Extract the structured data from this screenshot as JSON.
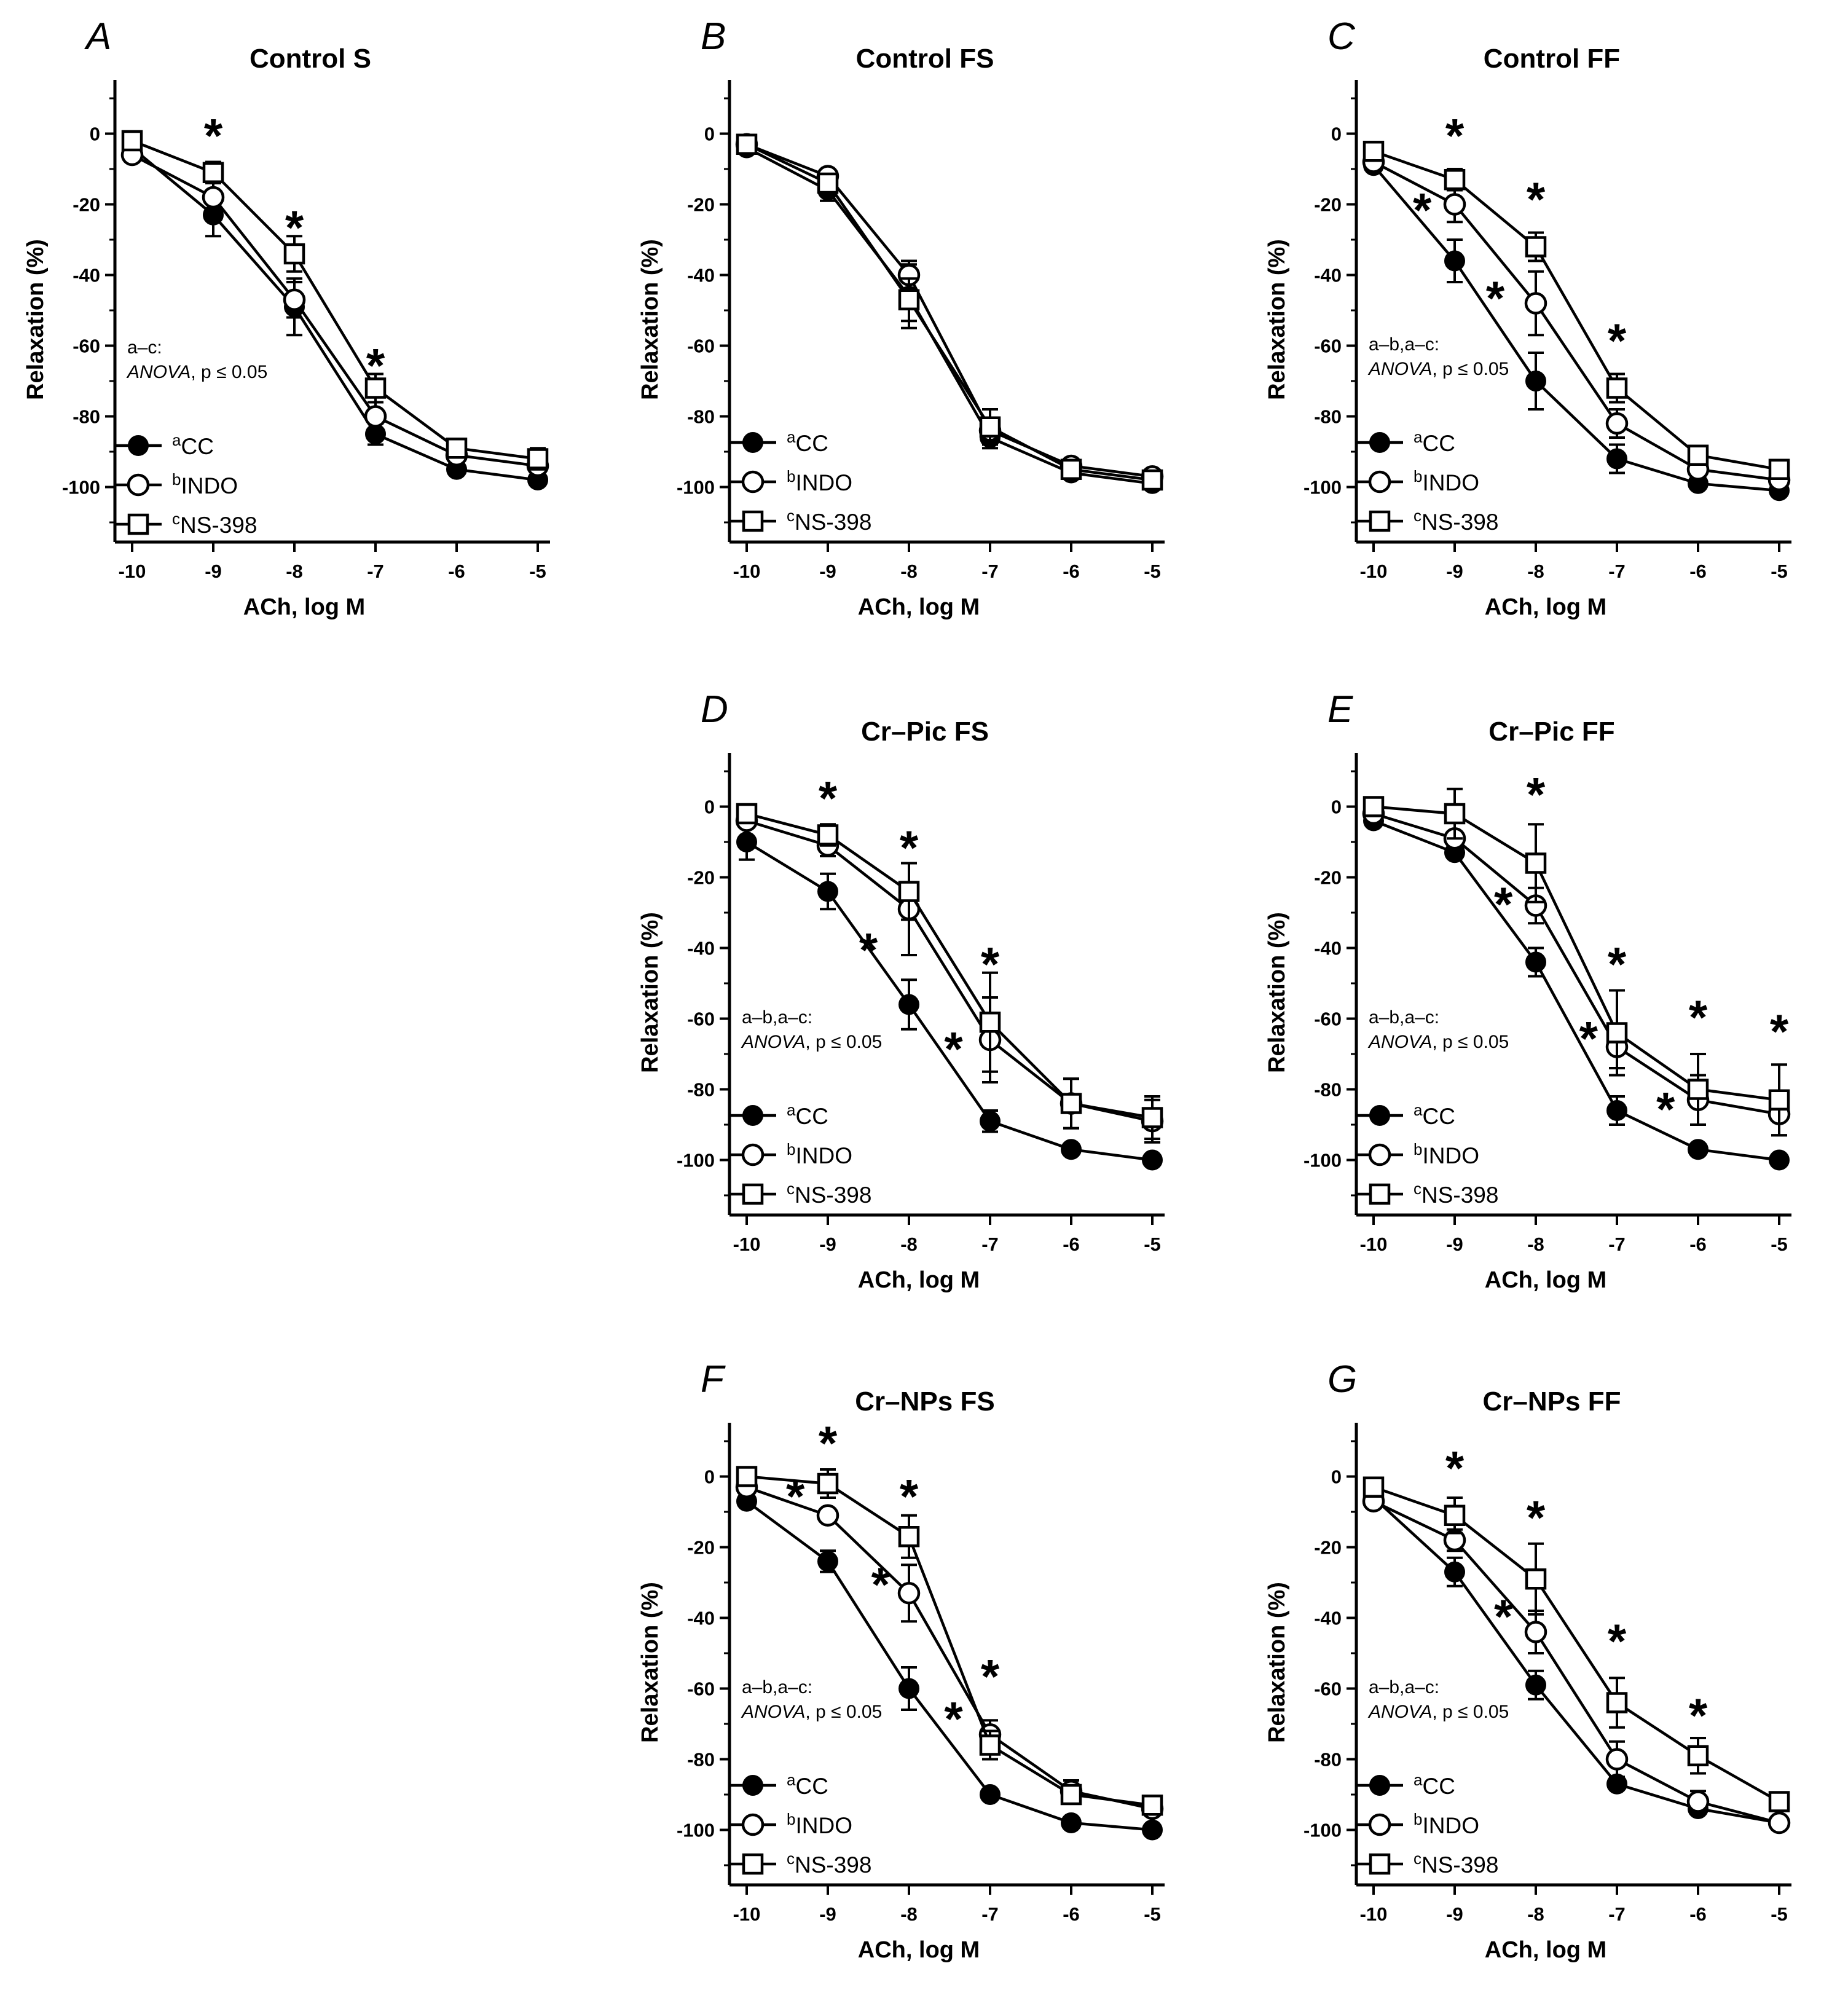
{
  "chart_data": [
    {
      "id": "A",
      "type": "line",
      "letter": "A",
      "title": "Control S",
      "xlabel": "ACh, log M",
      "ylabel": "Relaxation (%)",
      "xlim": [
        -10,
        -5
      ],
      "ylim": [
        -110,
        10
      ],
      "xticks": [
        "-10",
        "-9",
        "-8",
        "-7",
        "-6",
        "-5"
      ],
      "yticks": [
        "0",
        "-20",
        "-40",
        "-60",
        "-80",
        "-100"
      ],
      "x": [
        -10,
        -9,
        -8,
        -7,
        -6,
        -5
      ],
      "series": [
        {
          "name": "CC",
          "sup": "a",
          "marker": "filled-circle",
          "values": [
            -4,
            -23,
            -49,
            -85,
            -95,
            -98
          ],
          "err": [
            2,
            6,
            8,
            3,
            2,
            2
          ]
        },
        {
          "name": "INDO",
          "sup": "b",
          "marker": "open-circle",
          "values": [
            -6,
            -18,
            -47,
            -80,
            -91,
            -94
          ],
          "err": [
            2,
            4,
            5,
            4,
            2,
            2
          ]
        },
        {
          "name": "NS-398",
          "sup": "c",
          "marker": "open-square",
          "values": [
            -2,
            -11,
            -34,
            -72,
            -89,
            -92
          ],
          "err": [
            1,
            3,
            5,
            4,
            2,
            3
          ]
        }
      ],
      "stars": [
        {
          "x": -9,
          "y": 0
        },
        {
          "x": -8,
          "y": -26
        },
        {
          "x": -7,
          "y": -65
        }
      ],
      "annotation": {
        "line1": "a–c:",
        "anova": "ANOVA",
        "rest": ", p ≤ 0.05"
      }
    },
    {
      "id": "B",
      "type": "line",
      "letter": "B",
      "title": "Control FS",
      "xlabel": "ACh, log M",
      "ylabel": "Relaxation (%)",
      "xlim": [
        -10,
        -5
      ],
      "ylim": [
        -110,
        10
      ],
      "xticks": [
        "-10",
        "-9",
        "-8",
        "-7",
        "-6",
        "-5"
      ],
      "yticks": [
        "0",
        "-20",
        "-40",
        "-60",
        "-80",
        "-100"
      ],
      "x": [
        -10,
        -9,
        -8,
        -7,
        -6,
        -5
      ],
      "series": [
        {
          "name": "CC",
          "sup": "a",
          "marker": "filled-circle",
          "values": [
            -4,
            -16,
            -46,
            -86,
            -96,
            -99
          ],
          "err": [
            1,
            3,
            9,
            3,
            1,
            1
          ]
        },
        {
          "name": "INDO",
          "sup": "b",
          "marker": "open-circle",
          "values": [
            -3,
            -12,
            -40,
            -84,
            -94,
            -97
          ],
          "err": [
            1,
            2,
            4,
            3,
            1,
            1
          ]
        },
        {
          "name": "NS-398",
          "sup": "c",
          "marker": "open-square",
          "values": [
            -3,
            -14,
            -47,
            -83,
            -95,
            -98
          ],
          "err": [
            1,
            2,
            6,
            5,
            1,
            1
          ]
        }
      ],
      "stars": [],
      "annotation": null
    },
    {
      "id": "C",
      "type": "line",
      "letter": "C",
      "title": "Control FF",
      "xlabel": "ACh, log M",
      "ylabel": "Relaxation (%)",
      "xlim": [
        -10,
        -5
      ],
      "ylim": [
        -110,
        10
      ],
      "xticks": [
        "-10",
        "-9",
        "-8",
        "-7",
        "-6",
        "-5"
      ],
      "yticks": [
        "0",
        "-20",
        "-40",
        "-60",
        "-80",
        "-100"
      ],
      "x": [
        -10,
        -9,
        -8,
        -7,
        -6,
        -5
      ],
      "series": [
        {
          "name": "CC",
          "sup": "a",
          "marker": "filled-circle",
          "values": [
            -9,
            -36,
            -70,
            -92,
            -99,
            -101
          ],
          "err": [
            2,
            6,
            8,
            4,
            1,
            1
          ]
        },
        {
          "name": "INDO",
          "sup": "b",
          "marker": "open-circle",
          "values": [
            -8,
            -20,
            -48,
            -82,
            -95,
            -98
          ],
          "err": [
            2,
            5,
            9,
            4,
            2,
            1
          ]
        },
        {
          "name": "NS-398",
          "sup": "c",
          "marker": "open-square",
          "values": [
            -5,
            -13,
            -32,
            -72,
            -91,
            -95
          ],
          "err": [
            1,
            3,
            4,
            4,
            2,
            2
          ]
        }
      ],
      "stars": [
        {
          "x": -9,
          "y": 0
        },
        {
          "x": -9.4,
          "y": -21
        },
        {
          "x": -8,
          "y": -18
        },
        {
          "x": -8.5,
          "y": -46
        },
        {
          "x": -7,
          "y": -58
        }
      ],
      "annotation": {
        "line1": "a–b,a–c:",
        "anova": "ANOVA",
        "rest": ", p ≤ 0.05"
      }
    },
    {
      "id": "D",
      "type": "line",
      "letter": "D",
      "title": "Cr–Pic FS",
      "xlabel": "ACh, log M",
      "ylabel": "Relaxation (%)",
      "xlim": [
        -10,
        -5
      ],
      "ylim": [
        -110,
        10
      ],
      "xticks": [
        "-10",
        "-9",
        "-8",
        "-7",
        "-6",
        "-5"
      ],
      "yticks": [
        "0",
        "-20",
        "-40",
        "-60",
        "-80",
        "-100"
      ],
      "x": [
        -10,
        -9,
        -8,
        -7,
        -6,
        -5
      ],
      "series": [
        {
          "name": "CC",
          "sup": "a",
          "marker": "filled-circle",
          "values": [
            -10,
            -24,
            -56,
            -89,
            -97,
            -100
          ],
          "err": [
            5,
            5,
            7,
            3,
            1,
            1
          ]
        },
        {
          "name": "INDO",
          "sup": "b",
          "marker": "open-circle",
          "values": [
            -4,
            -11,
            -29,
            -66,
            -84,
            -89
          ],
          "err": [
            1,
            3,
            13,
            12,
            7,
            6
          ]
        },
        {
          "name": "NS-398",
          "sup": "c",
          "marker": "open-square",
          "values": [
            -2,
            -8,
            -24,
            -61,
            -84,
            -88
          ],
          "err": [
            1,
            3,
            8,
            14,
            7,
            6
          ]
        }
      ],
      "stars": [
        {
          "x": -9,
          "y": 3
        },
        {
          "x": -8,
          "y": -11
        },
        {
          "x": -8.5,
          "y": -40
        },
        {
          "x": -7,
          "y": -44
        },
        {
          "x": -7.45,
          "y": -68
        }
      ],
      "annotation": {
        "line1": "a–b,a–c:",
        "anova": "ANOVA",
        "rest": ", p ≤ 0.05"
      }
    },
    {
      "id": "E",
      "type": "line",
      "letter": "E",
      "title": "Cr–Pic FF",
      "xlabel": "ACh, log M",
      "ylabel": "Relaxation (%)",
      "xlim": [
        -10,
        -5
      ],
      "ylim": [
        -110,
        10
      ],
      "xticks": [
        "-10",
        "-9",
        "-8",
        "-7",
        "-6",
        "-5"
      ],
      "yticks": [
        "0",
        "-20",
        "-40",
        "-60",
        "-80",
        "-100"
      ],
      "x": [
        -10,
        -9,
        -8,
        -7,
        -6,
        -5
      ],
      "series": [
        {
          "name": "CC",
          "sup": "a",
          "marker": "filled-circle",
          "values": [
            -4,
            -13,
            -44,
            -86,
            -97,
            -100
          ],
          "err": [
            1,
            2,
            4,
            4,
            1,
            1
          ]
        },
        {
          "name": "INDO",
          "sup": "b",
          "marker": "open-circle",
          "values": [
            -2,
            -9,
            -28,
            -68,
            -83,
            -87
          ],
          "err": [
            1,
            2,
            5,
            6,
            7,
            6
          ]
        },
        {
          "name": "NS-398",
          "sup": "c",
          "marker": "open-square",
          "values": [
            0,
            -2,
            -16,
            -64,
            -80,
            -83
          ],
          "err": [
            1,
            7,
            11,
            12,
            10,
            10
          ]
        }
      ],
      "stars": [
        {
          "x": -8,
          "y": 4
        },
        {
          "x": -8.4,
          "y": -27
        },
        {
          "x": -7,
          "y": -44
        },
        {
          "x": -7.35,
          "y": -65
        },
        {
          "x": -6,
          "y": -59
        },
        {
          "x": -6.4,
          "y": -85
        },
        {
          "x": -5,
          "y": -63
        }
      ],
      "annotation": {
        "line1": "a–b,a–c:",
        "anova": "ANOVA",
        "rest": ", p ≤ 0.05"
      }
    },
    {
      "id": "F",
      "type": "line",
      "letter": "F",
      "title": "Cr–NPs FS",
      "xlabel": "ACh, log M",
      "ylabel": "Relaxation (%)",
      "xlim": [
        -10,
        -5
      ],
      "ylim": [
        -110,
        10
      ],
      "xticks": [
        "-10",
        "-9",
        "-8",
        "-7",
        "-6",
        "-5"
      ],
      "yticks": [
        "0",
        "-20",
        "-40",
        "-60",
        "-80",
        "-100"
      ],
      "x": [
        -10,
        -9,
        -8,
        -7,
        -6,
        -5
      ],
      "series": [
        {
          "name": "CC",
          "sup": "a",
          "marker": "filled-circle",
          "values": [
            -7,
            -24,
            -60,
            -90,
            -98,
            -100
          ],
          "err": [
            1,
            3,
            6,
            2,
            1,
            1
          ]
        },
        {
          "name": "INDO",
          "sup": "b",
          "marker": "open-circle",
          "values": [
            -3,
            -11,
            -33,
            -73,
            -89,
            -94
          ],
          "err": [
            1,
            2,
            8,
            4,
            3,
            2
          ]
        },
        {
          "name": "NS-398",
          "sup": "c",
          "marker": "open-square",
          "values": [
            0,
            -2,
            -17,
            -76,
            -90,
            -93
          ],
          "err": [
            1,
            4,
            6,
            4,
            2,
            2
          ]
        }
      ],
      "stars": [
        {
          "x": -9,
          "y": 10
        },
        {
          "x": -9.4,
          "y": -5
        },
        {
          "x": -8,
          "y": -5
        },
        {
          "x": -8.35,
          "y": -30
        },
        {
          "x": -7,
          "y": -56
        },
        {
          "x": -7.45,
          "y": -68
        }
      ],
      "annotation": {
        "line1": "a–b,a–c:",
        "anova": "ANOVA",
        "rest": ", p ≤ 0.05"
      }
    },
    {
      "id": "G",
      "type": "line",
      "letter": "G",
      "title": "Cr–NPs FF",
      "xlabel": "ACh, log M",
      "ylabel": "Relaxation (%)",
      "xlim": [
        -10,
        -5
      ],
      "ylim": [
        -110,
        10
      ],
      "xticks": [
        "-10",
        "-9",
        "-8",
        "-7",
        "-6",
        "-5"
      ],
      "yticks": [
        "0",
        "-20",
        "-40",
        "-60",
        "-80",
        "-100"
      ],
      "x": [
        -10,
        -9,
        -8,
        -7,
        -6,
        -5
      ],
      "series": [
        {
          "name": "CC",
          "sup": "a",
          "marker": "filled-circle",
          "values": [
            -6,
            -27,
            -59,
            -87,
            -94,
            -98
          ],
          "err": [
            1,
            4,
            4,
            2,
            2,
            1
          ]
        },
        {
          "name": "INDO",
          "sup": "b",
          "marker": "open-circle",
          "values": [
            -7,
            -18,
            -44,
            -80,
            -92,
            -98
          ],
          "err": [
            1,
            3,
            6,
            5,
            3,
            1
          ]
        },
        {
          "name": "NS-398",
          "sup": "c",
          "marker": "open-square",
          "values": [
            -3,
            -11,
            -29,
            -64,
            -79,
            -92
          ],
          "err": [
            1,
            5,
            10,
            7,
            5,
            2
          ]
        }
      ],
      "stars": [
        {
          "x": -9,
          "y": 3
        },
        {
          "x": -8,
          "y": -11
        },
        {
          "x": -8.4,
          "y": -39
        },
        {
          "x": -7,
          "y": -46
        },
        {
          "x": -6,
          "y": -67
        }
      ],
      "annotation": {
        "line1": "a–b,a–c:",
        "anova": "ANOVA",
        "rest": ", p ≤ 0.05"
      }
    }
  ]
}
